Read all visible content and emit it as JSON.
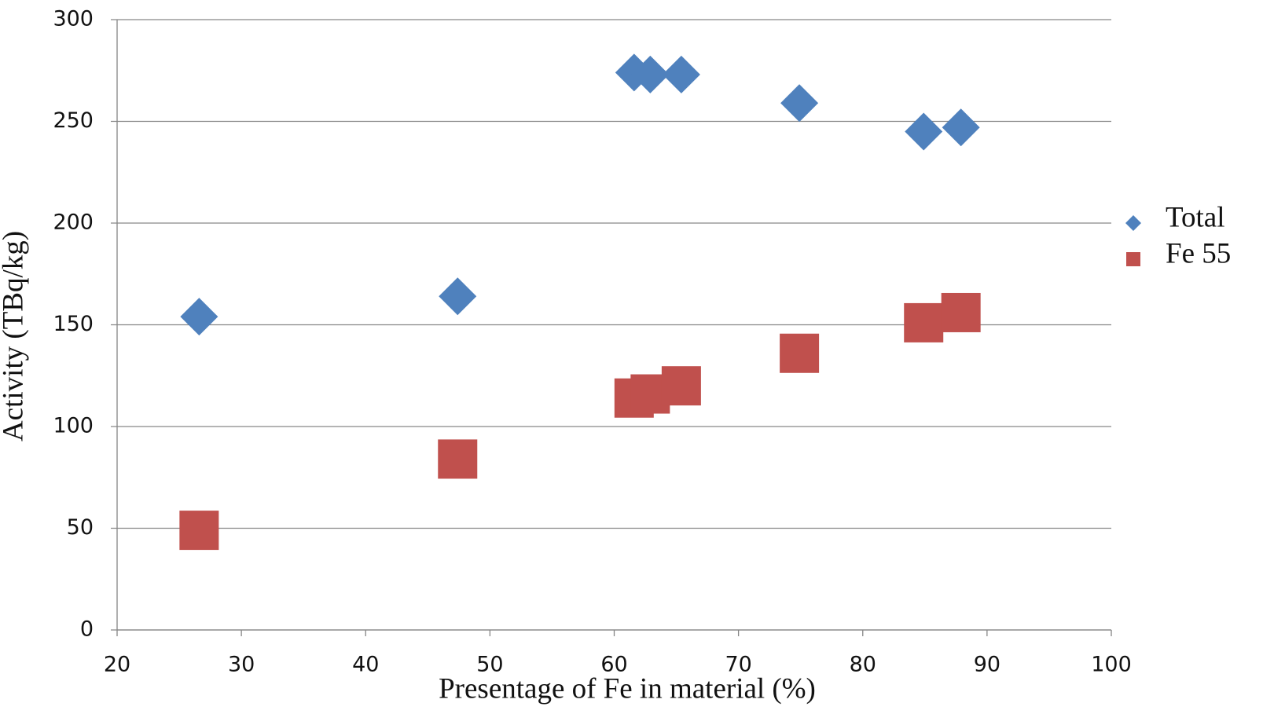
{
  "chart_data": {
    "type": "scatter",
    "x_label": "Presentage of Fe in material (%)",
    "y_label": "Activity (TBq/kg)",
    "series": [
      {
        "name": "Total",
        "color": "#4f81bd",
        "marker": "diamond",
        "x": [
          26.6,
          47.4,
          61.6,
          62.9,
          65.4,
          74.9,
          84.9,
          87.9
        ],
        "values": [
          154,
          164,
          274,
          273,
          273,
          259,
          245,
          247
        ]
      },
      {
        "name": "Fe 55",
        "color": "#c0504d",
        "marker": "square",
        "x": [
          26.6,
          47.4,
          61.6,
          62.9,
          65.4,
          74.9,
          84.9,
          87.9
        ],
        "values": [
          49,
          84,
          114,
          116,
          120,
          136,
          151,
          156
        ]
      }
    ],
    "xlim": [
      20,
      100
    ],
    "xticks": [
      20,
      30,
      40,
      50,
      60,
      70,
      80,
      90,
      100
    ],
    "ylim": [
      0,
      300
    ],
    "yticks": [
      0,
      50,
      100,
      150,
      200,
      250,
      300
    ],
    "grid": true,
    "legend": "right"
  }
}
